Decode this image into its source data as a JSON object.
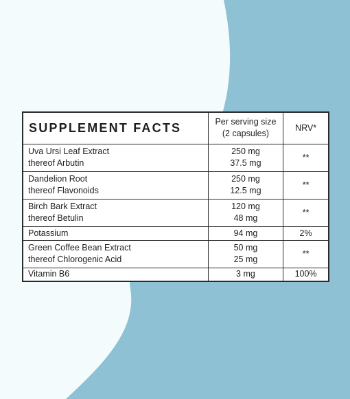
{
  "colors": {
    "background": "#f3fbfd",
    "accent_shape": "#8dc1d3",
    "table_border": "#2a2a2a"
  },
  "table": {
    "title": "SUPPLEMENT FACTS",
    "header_amount_line1": "Per serving size",
    "header_amount_line2": "(2 capsules)",
    "header_nrv": "NRV*",
    "rows": [
      {
        "name1": "Uva Ursi Leaf Extract",
        "name2": "thereof Arbutin",
        "amount1": "250 mg",
        "amount2": "37.5 mg",
        "nrv": "**"
      },
      {
        "name1": "Dandelion Root",
        "name2": "thereof Flavonoids",
        "amount1": "250 mg",
        "amount2": "12.5 mg",
        "nrv": "**"
      },
      {
        "name1": "Birch Bark Extract",
        "name2": "thereof Betulin",
        "amount1": "120 mg",
        "amount2": "48 mg",
        "nrv": "**"
      },
      {
        "name1": "Potassium",
        "amount1": "94 mg",
        "nrv": "2%"
      },
      {
        "name1": "Green Coffee Bean Extract",
        "name2": "thereof Chlorogenic Acid",
        "amount1": "50 mg",
        "amount2": "25 mg",
        "nrv": "**"
      },
      {
        "name1": "Vitamin B6",
        "amount1": "3 mg",
        "nrv": "100%"
      }
    ]
  }
}
